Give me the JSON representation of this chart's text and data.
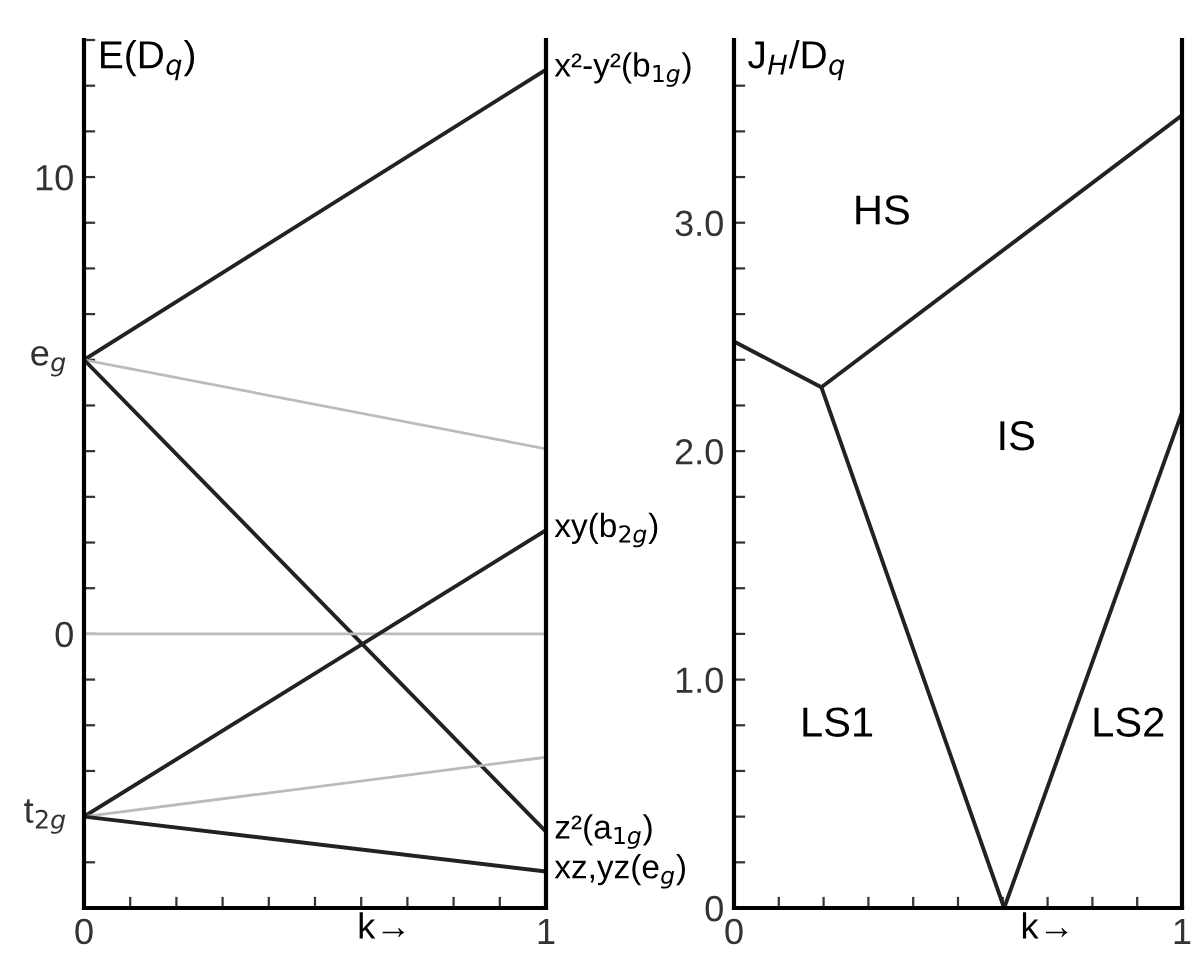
{
  "chart_data": [
    {
      "type": "line",
      "ylabel": "E(D$_{q}$)",
      "xlabel": "k→",
      "xlim": [
        0,
        1
      ],
      "ylim": [
        -6,
        13
      ],
      "xticks": [
        0,
        {
          "value": 0.1,
          "label": null
        },
        {
          "value": 0.2,
          "label": null
        },
        {
          "value": 0.3,
          "label": null
        },
        {
          "value": 0.4,
          "label": null
        },
        {
          "value": 0.5,
          "label": null
        },
        {
          "value": 0.6,
          "label": null
        },
        {
          "value": 0.7,
          "label": null
        },
        {
          "value": 0.8,
          "label": null
        },
        {
          "value": 0.9,
          "label": null
        },
        1
      ],
      "yticks": [
        {
          "value": -6,
          "label": null
        },
        {
          "value": -5,
          "label": null
        },
        {
          "value": -4,
          "label": null
        },
        {
          "value": -3,
          "label": null
        },
        {
          "value": -2,
          "label": null
        },
        {
          "value": -1,
          "label": null
        },
        0,
        {
          "value": 1,
          "label": null
        },
        {
          "value": 2,
          "label": null
        },
        {
          "value": 3,
          "label": null
        },
        {
          "value": 4,
          "label": null
        },
        {
          "value": 5,
          "label": null
        },
        {
          "value": 6,
          "label": null
        },
        {
          "value": 7,
          "label": null
        },
        {
          "value": 8,
          "label": null
        },
        {
          "value": 9,
          "label": null
        },
        10,
        {
          "value": 11,
          "label": null
        },
        {
          "value": 12,
          "label": null
        },
        {
          "value": 13,
          "label": null
        }
      ],
      "x": [
        0,
        1
      ],
      "marker": "none",
      "line_style": "solid",
      "grid": false,
      "legend": false,
      "series": [
        {
          "color": "#222222",
          "values": [
            6,
            12.35
          ]
        },
        {
          "color": "#bbbbbb",
          "values": [
            6,
            4.05
          ]
        },
        {
          "color": "#222222",
          "values": [
            6,
            -4.33
          ]
        },
        {
          "color": "#bbbbbb",
          "values": [
            0,
            0
          ]
        },
        {
          "color": "#222222",
          "values": [
            -4,
            2.27
          ]
        },
        {
          "color": "#bbbbbb",
          "values": [
            -4,
            -2.7
          ]
        },
        {
          "color": "#222222",
          "values": [
            -4,
            -5.2
          ]
        }
      ],
      "annotations": [
        "e$_{g}$",
        "t$_{2g}$",
        "x²-y²(b$_{1g}$)",
        "xy(b$_{2g}$)",
        "z²(a$_{1g}$)",
        "xz,yz(e$_{g}$)"
      ]
    },
    {
      "type": "line",
      "ylabel": "J$_{H}$/D$_{q}$",
      "xlabel": "k→",
      "xlim": [
        0,
        1
      ],
      "ylim": [
        0,
        3.8
      ],
      "xticks": [
        0,
        {
          "value": 0.1,
          "label": null
        },
        {
          "value": 0.2,
          "label": null
        },
        {
          "value": 0.3,
          "label": null
        },
        {
          "value": 0.4,
          "label": null
        },
        {
          "value": 0.5,
          "label": null
        },
        {
          "value": 0.6,
          "label": null
        },
        {
          "value": 0.7,
          "label": null
        },
        {
          "value": 0.8,
          "label": null
        },
        {
          "value": 0.9,
          "label": null
        },
        1
      ],
      "yticks": [
        0,
        {
          "value": 0.2,
          "label": null
        },
        {
          "value": 0.4,
          "label": null
        },
        {
          "value": 0.6,
          "label": null
        },
        {
          "value": 0.8,
          "label": null
        },
        {
          "value": 1.0,
          "label": "1.0"
        },
        {
          "value": 1.2,
          "label": null
        },
        {
          "value": 1.4,
          "label": null
        },
        {
          "value": 1.6,
          "label": null
        },
        {
          "value": 1.8,
          "label": null
        },
        {
          "value": 2.0,
          "label": "2.0"
        },
        {
          "value": 2.2,
          "label": null
        },
        {
          "value": 2.4,
          "label": null
        },
        {
          "value": 2.6,
          "label": null
        },
        {
          "value": 2.8,
          "label": null
        },
        {
          "value": 3.0,
          "label": "3.0"
        },
        {
          "value": 3.2,
          "label": null
        },
        {
          "value": 3.4,
          "label": null
        },
        {
          "value": 3.6,
          "label": null
        }
      ],
      "marker": "none",
      "line_style": "solid",
      "grid": false,
      "legend": false,
      "series": [
        {
          "color": "#222222",
          "x": [
            0,
            0.195,
            1
          ],
          "values": [
            2.48,
            2.28,
            3.47
          ]
        },
        {
          "color": "#222222",
          "x": [
            0.195,
            0.603,
            1
          ],
          "values": [
            2.28,
            0,
            2.17
          ]
        }
      ],
      "annotations": [
        "HS",
        "IS",
        "LS1",
        "LS2"
      ]
    }
  ]
}
